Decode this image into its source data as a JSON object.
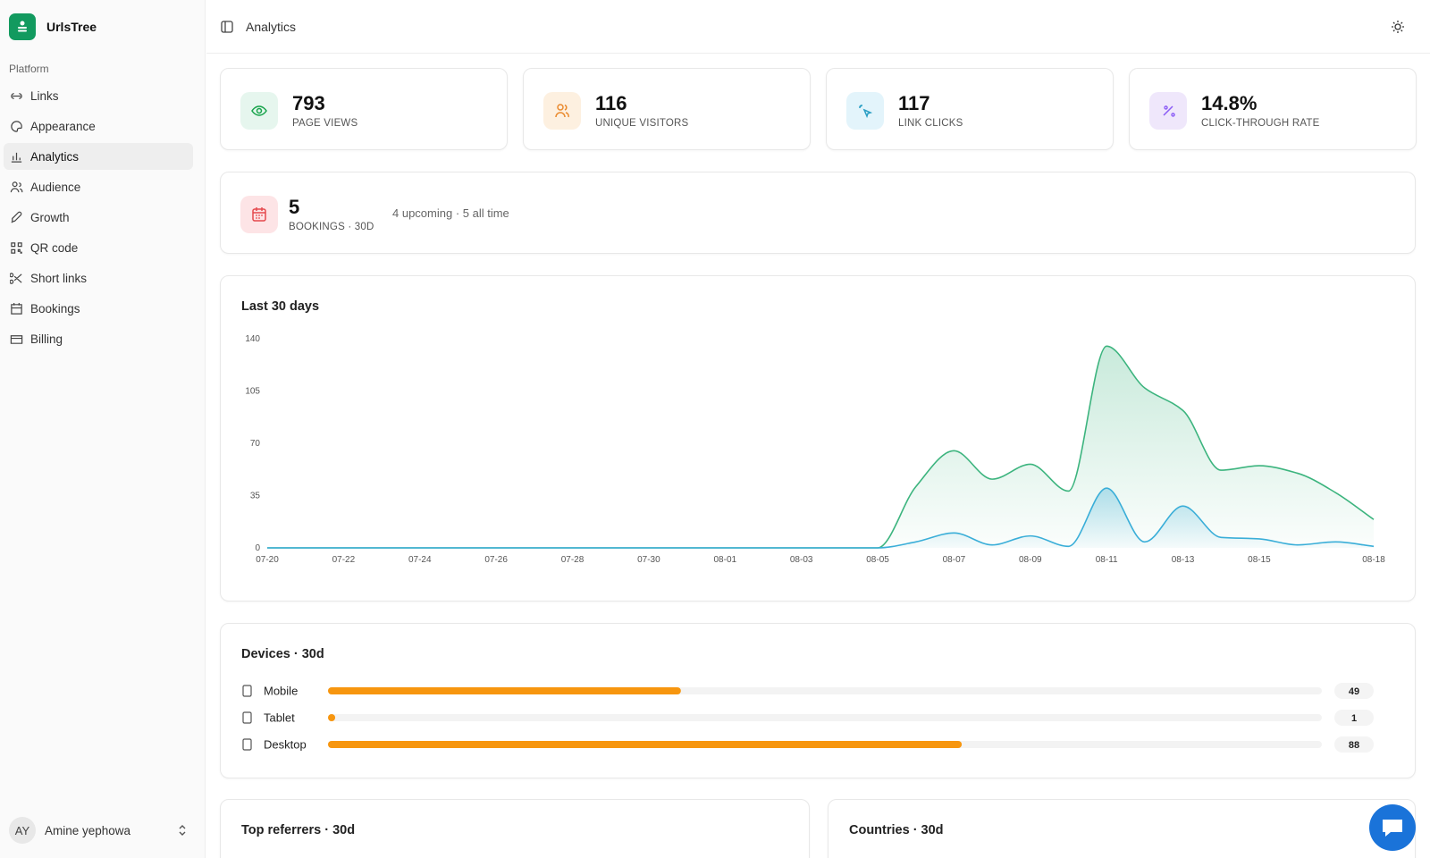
{
  "sidebar": {
    "brand": "UrlsTree",
    "section": "Platform",
    "nav": [
      "Links",
      "Appearance",
      "Analytics",
      "Audience",
      "Growth",
      "QR code",
      "Short links",
      "Bookings",
      "Billing"
    ],
    "active": "Analytics",
    "user": {
      "initials": "AY",
      "name": "Amine yephowa"
    }
  },
  "header": {
    "title": "Analytics"
  },
  "stats": [
    {
      "value": "793",
      "label": "PAGE VIEWS"
    },
    {
      "value": "116",
      "label": "UNIQUE VISITORS"
    },
    {
      "value": "117",
      "label": "LINK CLICKS"
    },
    {
      "value": "14.8%",
      "label": "CLICK-THROUGH RATE"
    }
  ],
  "bookings": {
    "value": "5",
    "label": "BOOKINGS · 30D",
    "note": "4 upcoming · 5 all time"
  },
  "chart_data": [
    {
      "type": "area",
      "title": "Last 30 days",
      "categories": [
        "07-20",
        null,
        "07-22",
        null,
        "07-24",
        null,
        "07-26",
        null,
        "07-28",
        null,
        "07-30",
        null,
        "08-01",
        null,
        "08-03",
        null,
        "08-05",
        null,
        "08-07",
        null,
        "08-09",
        null,
        "08-11",
        null,
        "08-13",
        null,
        "08-15",
        null,
        null,
        "08-18"
      ],
      "series": [
        {
          "color": "#3cb47e",
          "values": [
            0,
            0,
            0,
            0,
            0,
            0,
            0,
            0,
            0,
            0,
            0,
            0,
            0,
            0,
            0,
            0,
            0,
            41,
            65,
            46,
            56,
            38,
            135,
            107,
            92,
            52,
            55,
            50,
            37,
            19
          ]
        },
        {
          "color": "#3aaed8",
          "values": [
            0,
            0,
            0,
            0,
            0,
            0,
            0,
            0,
            0,
            0,
            0,
            0,
            0,
            0,
            0,
            0,
            0,
            4,
            10,
            2,
            8,
            1,
            40,
            4,
            28,
            7,
            6,
            2,
            4,
            1
          ]
        }
      ],
      "ylim": [
        0,
        140
      ],
      "yticks": [
        0,
        35,
        70,
        105,
        140
      ],
      "grid": false
    },
    {
      "type": "hbar",
      "title": "Devices · 30d",
      "categories": [
        "Mobile",
        "Tablet",
        "Desktop"
      ],
      "values": [
        49,
        1,
        88
      ],
      "color": "#f7960f",
      "xlim": [
        0,
        138
      ]
    }
  ],
  "panels": [
    "Top referrers · 30d",
    "Countries · 30d"
  ]
}
